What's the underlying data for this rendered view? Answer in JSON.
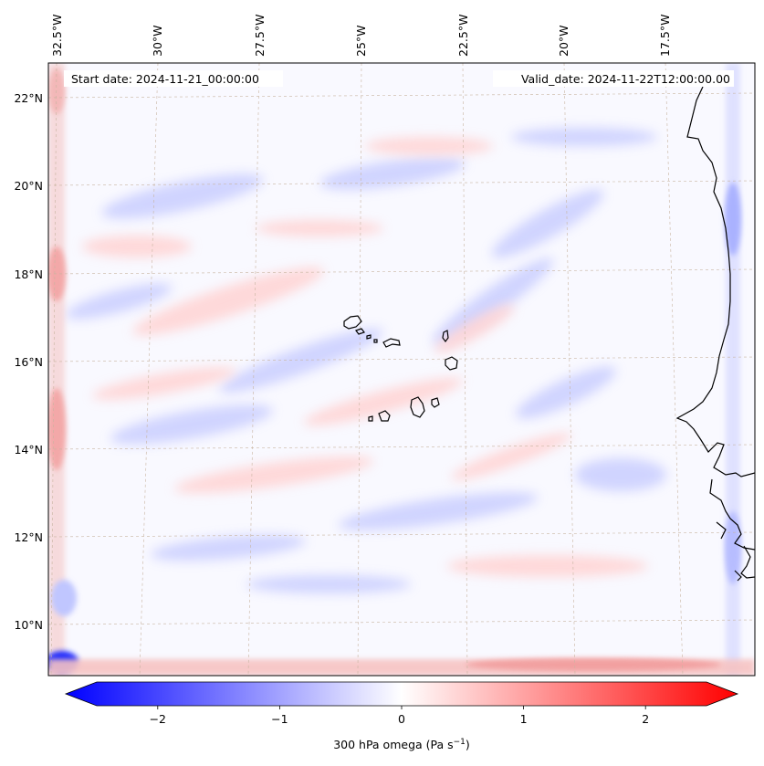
{
  "header": {
    "start_date": "Start date: 2024-11-21_00:00:00",
    "valid_date": "Valid_date: 2024-11-22T12:00:00.00"
  },
  "lon_labels": [
    "32.5°W",
    "30°W",
    "27.5°W",
    "25°W",
    "22.5°W",
    "20°W",
    "17.5°W"
  ],
  "lat_labels": [
    "22°N",
    "20°N",
    "18°N",
    "16°N",
    "14°N",
    "12°N",
    "10°N"
  ],
  "colorbar": {
    "ticks": [
      "−2",
      "−1",
      "0",
      "1",
      "2"
    ],
    "tick_values": [
      -2,
      -1,
      0,
      1,
      2
    ],
    "range": [
      -2.5,
      2.5
    ],
    "colors": {
      "low": "#0000ff",
      "mid": "#ffffff",
      "high": "#ff0000"
    }
  },
  "variable": {
    "label_main": "300 hPa omega (Pa s",
    "label_sup": "−1",
    "label_end": ")"
  },
  "colors": {
    "coastline": "#000000",
    "gridline": "#c8b4a0"
  }
}
